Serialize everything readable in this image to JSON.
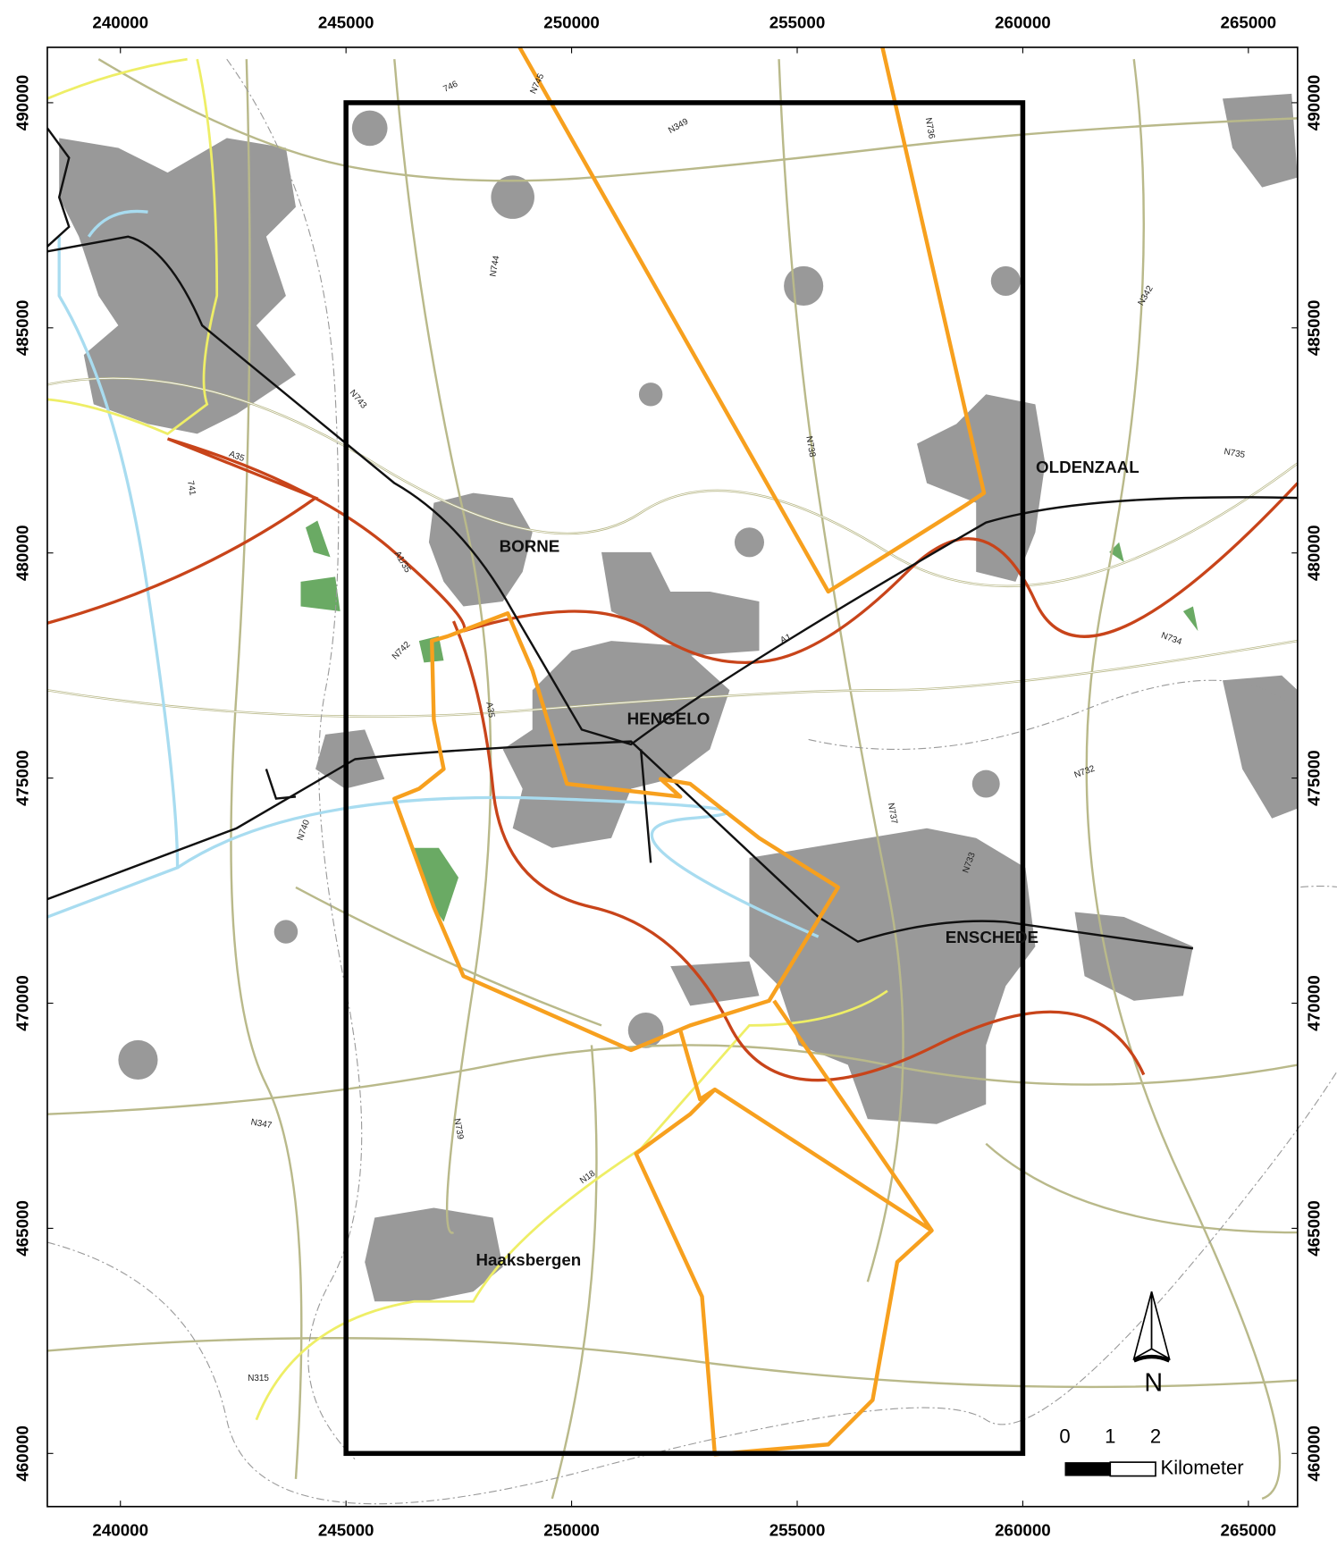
{
  "map": {
    "xlim": [
      238380,
      266090
    ],
    "ylim": [
      458820,
      491230
    ],
    "xticks": [
      240000,
      245000,
      250000,
      255000,
      260000,
      265000
    ],
    "yticks": [
      460000,
      465000,
      470000,
      475000,
      480000,
      485000,
      490000
    ],
    "study_area": {
      "x": [
        245000,
        260000
      ],
      "y": [
        460000,
        490000
      ]
    },
    "places": [
      "BORNE",
      "HENGELO",
      "OLDENZAAL",
      "ENSCHEDE",
      "Haaksbergen"
    ],
    "road_labels": [
      "A35",
      "A1/35",
      "A1",
      "N743",
      "N744",
      "N745",
      "746",
      "N349",
      "N736",
      "N738",
      "N342",
      "N735",
      "N734",
      "N732",
      "N737",
      "N733",
      "N742",
      "N740",
      "A35",
      "N739",
      "N18",
      "N347",
      "N315",
      "741"
    ],
    "scale_bar": {
      "labels": [
        "0",
        "1",
        "2"
      ],
      "unit": "Kilometer"
    },
    "north": "N"
  }
}
